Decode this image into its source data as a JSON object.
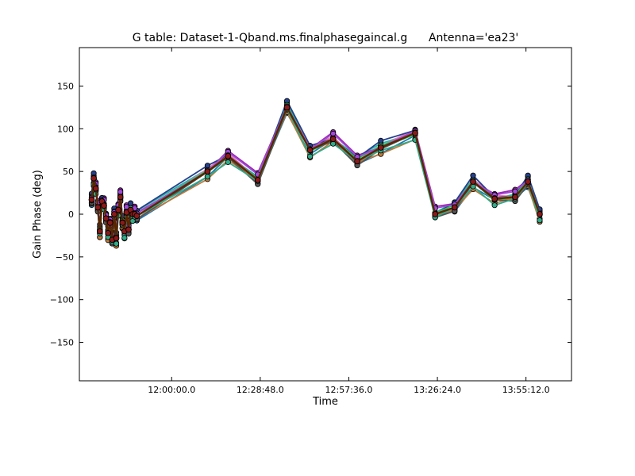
{
  "chart_data": {
    "type": "line",
    "title": "G table: Dataset-1-Qband.ms.finalphasegaincal.g      Antenna='ea23'",
    "xlabel": "Time",
    "ylabel": "Gain Phase (deg)",
    "x_unit": "seconds_of_day",
    "xlim": [
      41400,
      51000
    ],
    "ylim": [
      -195,
      195
    ],
    "xticks": [
      {
        "value": 43200,
        "label": "12:00:00.0"
      },
      {
        "value": 44928,
        "label": "12:28:48.0"
      },
      {
        "value": 46656,
        "label": "12:57:36.0"
      },
      {
        "value": 48384,
        "label": "13:26:24.0"
      },
      {
        "value": 50112,
        "label": "13:55:12.0"
      }
    ],
    "yticks": [
      {
        "value": 150,
        "label": "150"
      },
      {
        "value": 100,
        "label": "100"
      },
      {
        "value": 50,
        "label": "50"
      },
      {
        "value": 0,
        "label": "0"
      },
      {
        "value": -50,
        "label": "−50"
      },
      {
        "value": -100,
        "label": "−100"
      },
      {
        "value": -150,
        "label": "−150"
      }
    ],
    "grid": false,
    "legend": "none",
    "series_colors": [
      "#8b1a1a",
      "#1f77b4",
      "#2ab0b0",
      "#7f7f7f",
      "#9c27b0",
      "#39e639",
      "#e377c2",
      "#c07a3a",
      "#27408b",
      "#22c55e",
      "#555555",
      "#a14ad6",
      "#cd5c5c",
      "#33aa88"
    ],
    "main_series_color": "#5a2600",
    "x": [
      41640,
      41680,
      41720,
      41760,
      41800,
      41840,
      41880,
      41920,
      41960,
      42000,
      42040,
      42080,
      42120,
      42160,
      42200,
      42240,
      42280,
      42320,
      42360,
      42400,
      42440,
      42480,
      42520,
      43900,
      44300,
      44880,
      45450,
      45900,
      46350,
      46820,
      47280,
      47950,
      48340,
      48720,
      49080,
      49500,
      49900,
      50150,
      50380
    ],
    "y": [
      17,
      42,
      30,
      8,
      -20,
      15,
      10,
      -5,
      -22,
      -10,
      -30,
      0,
      -28,
      5,
      20,
      -10,
      -20,
      2,
      -18,
      5,
      0,
      0,
      -2,
      50,
      68,
      40,
      125,
      75,
      88,
      62,
      78,
      95,
      0,
      8,
      38,
      18,
      20,
      38,
      0
    ],
    "offsets": [
      0,
      -7,
      6,
      -4,
      9,
      -2,
      4,
      -9,
      8,
      3,
      -5,
      7,
      1,
      -8
    ]
  }
}
